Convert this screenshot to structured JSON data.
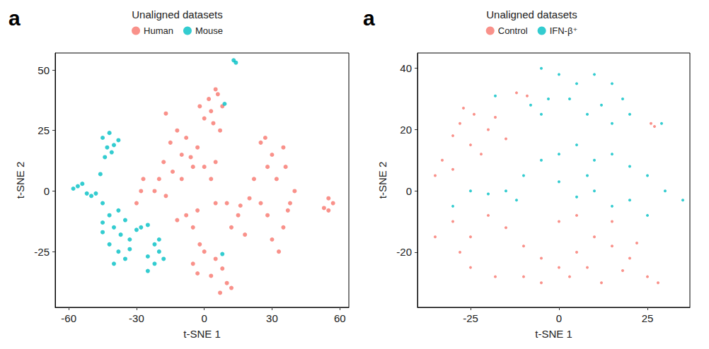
{
  "chart_data": [
    {
      "type": "scatter",
      "annotation": "a",
      "title": "Unaligned datasets",
      "xlabel": "t-SNE 1",
      "ylabel": "t-SNE 2",
      "xlim": [
        -66,
        64
      ],
      "xticks": [
        -60,
        -30,
        0,
        30,
        60
      ],
      "ylim": [
        -48,
        57
      ],
      "yticks": [
        -25,
        0,
        25,
        50
      ],
      "grid": false,
      "legend": "top",
      "series": [
        {
          "name": "Human",
          "color": "#F8766D",
          "marker": "circle",
          "values": [
            [
              2,
              38
            ],
            [
              5,
              42
            ],
            [
              8,
              35
            ],
            [
              0,
              30
            ],
            [
              4,
              28
            ],
            [
              7,
              25
            ],
            [
              -2,
              35
            ],
            [
              6,
              40
            ],
            [
              3,
              33
            ],
            [
              -15,
              20
            ],
            [
              -10,
              15
            ],
            [
              -18,
              12
            ],
            [
              -8,
              22
            ],
            [
              -12,
              25
            ],
            [
              -20,
              5
            ],
            [
              -22,
              0
            ],
            [
              -17,
              -2
            ],
            [
              -10,
              5
            ],
            [
              -5,
              10
            ],
            [
              0,
              10
            ],
            [
              5,
              12
            ],
            [
              3,
              5
            ],
            [
              -3,
              18
            ],
            [
              -14,
              8
            ],
            [
              -6,
              14
            ],
            [
              -28,
              0
            ],
            [
              -30,
              -5
            ],
            [
              -27,
              5
            ],
            [
              -8,
              -10
            ],
            [
              -5,
              -15
            ],
            [
              -12,
              -12
            ],
            [
              -3,
              -8
            ],
            [
              0,
              -25
            ],
            [
              -5,
              -30
            ],
            [
              3,
              -35
            ],
            [
              5,
              -28
            ],
            [
              -2,
              -22
            ],
            [
              8,
              -32
            ],
            [
              10,
              -38
            ],
            [
              12,
              -40
            ],
            [
              7,
              -42
            ],
            [
              -3,
              -34
            ],
            [
              10,
              -5
            ],
            [
              15,
              -10
            ],
            [
              20,
              -3
            ],
            [
              12,
              -15
            ],
            [
              18,
              -18
            ],
            [
              5,
              -5
            ],
            [
              16,
              -6
            ],
            [
              25,
              20
            ],
            [
              30,
              15
            ],
            [
              35,
              18
            ],
            [
              28,
              10
            ],
            [
              22,
              5
            ],
            [
              32,
              5
            ],
            [
              38,
              -5
            ],
            [
              35,
              -15
            ],
            [
              30,
              -20
            ],
            [
              28,
              -10
            ],
            [
              40,
              0
            ],
            [
              33,
              -25
            ],
            [
              37,
              -8
            ],
            [
              25,
              -5
            ],
            [
              27,
              22
            ],
            [
              36,
              10
            ],
            [
              55,
              -3
            ],
            [
              57,
              -5
            ],
            [
              53,
              -7
            ],
            [
              55,
              -8
            ],
            [
              -17,
              32
            ]
          ]
        },
        {
          "name": "Mouse",
          "color": "#00BFC4",
          "marker": "circle",
          "values": [
            [
              -45,
              22
            ],
            [
              -42,
              24
            ],
            [
              -40,
              19
            ],
            [
              -43,
              18
            ],
            [
              -38,
              21
            ],
            [
              -41,
              16
            ],
            [
              -44,
              14
            ],
            [
              -56,
              2
            ],
            [
              -58,
              1
            ],
            [
              -54,
              3
            ],
            [
              -52,
              -1
            ],
            [
              -50,
              -2
            ],
            [
              -48,
              -1
            ],
            [
              -46,
              7
            ],
            [
              -45,
              -5
            ],
            [
              -42,
              -10
            ],
            [
              -38,
              -8
            ],
            [
              -35,
              -12
            ],
            [
              -40,
              -15
            ],
            [
              -45,
              -17
            ],
            [
              -37,
              -18
            ],
            [
              -33,
              -20
            ],
            [
              -42,
              -22
            ],
            [
              -38,
              -25
            ],
            [
              -35,
              -28
            ],
            [
              -40,
              -30
            ],
            [
              -33,
              -24
            ],
            [
              -45,
              -13
            ],
            [
              -30,
              -16
            ],
            [
              -28,
              -15
            ],
            [
              -25,
              -14
            ],
            [
              -22,
              -22
            ],
            [
              -20,
              -25
            ],
            [
              -25,
              -27
            ],
            [
              -22,
              -30
            ],
            [
              -25,
              -33
            ],
            [
              -20,
              -20
            ],
            [
              -18,
              -28
            ],
            [
              13,
              54
            ],
            [
              14,
              53
            ],
            [
              8,
              -26
            ],
            [
              9,
              36
            ]
          ]
        }
      ]
    },
    {
      "type": "scatter",
      "annotation": "a",
      "title": "Unaligned datasets",
      "xlabel": "t-SNE 1",
      "ylabel": "t-SNE 2",
      "xlim": [
        -40,
        37
      ],
      "xticks": [
        -25,
        0,
        25
      ],
      "ylim": [
        -38,
        45
      ],
      "yticks": [
        -20,
        0,
        20,
        40
      ],
      "grid": false,
      "legend": "top",
      "series": [
        {
          "name": "Control",
          "color": "#F8766D",
          "marker": "circle",
          "values": [
            [
              -28,
              22
            ],
            [
              -24,
              25
            ],
            [
              -20,
              20
            ],
            [
              -30,
              18
            ],
            [
              -25,
              15
            ],
            [
              -33,
              10
            ],
            [
              -35,
              5
            ],
            [
              -30,
              7
            ],
            [
              -22,
              12
            ],
            [
              -18,
              24
            ],
            [
              -27,
              27
            ],
            [
              -15,
              17
            ],
            [
              -12,
              32
            ],
            [
              -9,
              31
            ],
            [
              -30,
              -10
            ],
            [
              -25,
              -15
            ],
            [
              -20,
              -8
            ],
            [
              -15,
              -12
            ],
            [
              -10,
              -18
            ],
            [
              -5,
              -22
            ],
            [
              0,
              -25
            ],
            [
              5,
              -20
            ],
            [
              10,
              -15
            ],
            [
              15,
              -18
            ],
            [
              20,
              -22
            ],
            [
              25,
              -28
            ],
            [
              28,
              -30
            ],
            [
              -25,
              -25
            ],
            [
              -18,
              -28
            ],
            [
              -10,
              -28
            ],
            [
              -5,
              -30
            ],
            [
              3,
              -28
            ],
            [
              8,
              -25
            ],
            [
              12,
              -30
            ],
            [
              18,
              -26
            ],
            [
              22,
              -17
            ],
            [
              -35,
              -15
            ],
            [
              -28,
              -20
            ],
            [
              0,
              -10
            ],
            [
              5,
              -8
            ],
            [
              15,
              -10
            ],
            [
              26,
              22
            ],
            [
              27,
              21
            ]
          ]
        },
        {
          "name": "IFN-β⁺",
          "color": "#00BFC4",
          "marker": "circle",
          "values": [
            [
              -5,
              40
            ],
            [
              0,
              38
            ],
            [
              5,
              35
            ],
            [
              10,
              38
            ],
            [
              15,
              35
            ],
            [
              18,
              30
            ],
            [
              12,
              28
            ],
            [
              8,
              25
            ],
            [
              3,
              30
            ],
            [
              -3,
              30
            ],
            [
              -8,
              28
            ],
            [
              20,
              25
            ],
            [
              15,
              22
            ],
            [
              -5,
              25
            ],
            [
              -15,
              0
            ],
            [
              -10,
              5
            ],
            [
              -5,
              10
            ],
            [
              0,
              12
            ],
            [
              5,
              15
            ],
            [
              10,
              10
            ],
            [
              15,
              12
            ],
            [
              20,
              8
            ],
            [
              25,
              5
            ],
            [
              30,
              0
            ],
            [
              35,
              -3
            ],
            [
              0,
              3
            ],
            [
              5,
              -2
            ],
            [
              10,
              0
            ],
            [
              15,
              -5
            ],
            [
              20,
              -3
            ],
            [
              -12,
              -3
            ],
            [
              -20,
              -1
            ],
            [
              -25,
              0
            ],
            [
              -30,
              -5
            ],
            [
              25,
              -8
            ],
            [
              8,
              5
            ],
            [
              -18,
              31
            ],
            [
              29,
              22
            ]
          ]
        }
      ]
    }
  ]
}
